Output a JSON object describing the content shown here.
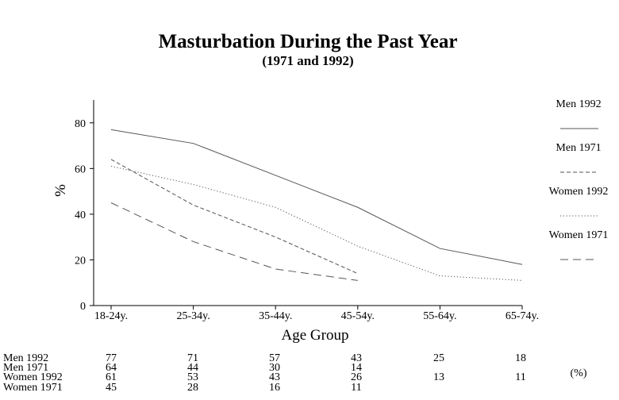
{
  "chart_data": {
    "type": "line",
    "title": "Masturbation During the Past Year",
    "subtitle": "(1971 and 1992)",
    "xlabel": "Age Group",
    "ylabel": "%",
    "categories": [
      "18-24y.",
      "25-34y.",
      "35-44y.",
      "45-54y.",
      "55-64y.",
      "65-74y."
    ],
    "ylim": [
      0,
      90
    ],
    "yticks": [
      "0",
      "20",
      "40",
      "60",
      "80"
    ],
    "grid": false,
    "legend_position": "right",
    "series": [
      {
        "name": "Men 1992",
        "values": [
          77,
          71,
          57,
          43,
          25,
          18
        ],
        "dash": "solid"
      },
      {
        "name": "Men 1971",
        "values": [
          64,
          44,
          30,
          14,
          null,
          null
        ],
        "dash": "dashed"
      },
      {
        "name": "Women 1992",
        "values": [
          61,
          53,
          43,
          26,
          13,
          11
        ],
        "dash": "dotted"
      },
      {
        "name": "Women 1971",
        "values": [
          45,
          28,
          16,
          11,
          null,
          null
        ],
        "dash": "long-dash"
      }
    ],
    "table": {
      "unit": "(%)",
      "rows": [
        {
          "label": "Men 1992",
          "values": [
            "77",
            "71",
            "57",
            "43",
            "25",
            "18"
          ]
        },
        {
          "label": "Men 1971",
          "values": [
            "64",
            "44",
            "30",
            "14",
            "",
            ""
          ]
        },
        {
          "label": "Women 1992",
          "values": [
            "61",
            "53",
            "43",
            "26",
            "13",
            "11"
          ]
        },
        {
          "label": "Women 1971",
          "values": [
            "45",
            "28",
            "16",
            "11",
            "",
            ""
          ]
        }
      ]
    }
  }
}
